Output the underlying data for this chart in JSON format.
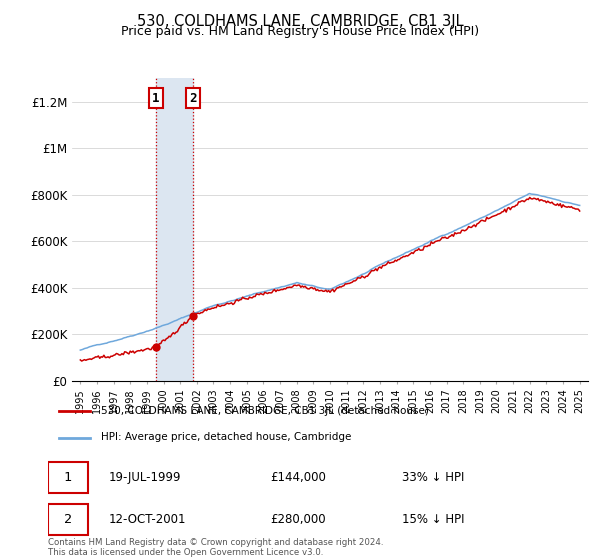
{
  "title": "530, COLDHAMS LANE, CAMBRIDGE, CB1 3JL",
  "subtitle": "Price paid vs. HM Land Registry's House Price Index (HPI)",
  "legend_line1": "530, COLDHAMS LANE, CAMBRIDGE, CB1 3JL (detached house)",
  "legend_line2": "HPI: Average price, detached house, Cambridge",
  "sale1_date": "19-JUL-1999",
  "sale1_price": "£144,000",
  "sale1_pct": "33% ↓ HPI",
  "sale1_year": 1999.54,
  "sale1_value": 144000,
  "sale2_date": "12-OCT-2001",
  "sale2_price": "£280,000",
  "sale2_pct": "15% ↓ HPI",
  "sale2_year": 2001.78,
  "sale2_value": 280000,
  "hpi_color": "#6fa8dc",
  "price_color": "#cc0000",
  "shade_color": "#dce6f1",
  "footnote": "Contains HM Land Registry data © Crown copyright and database right 2024.\nThis data is licensed under the Open Government Licence v3.0.",
  "ylim": [
    0,
    1300000
  ],
  "xlim": [
    1994.5,
    2025.5
  ]
}
